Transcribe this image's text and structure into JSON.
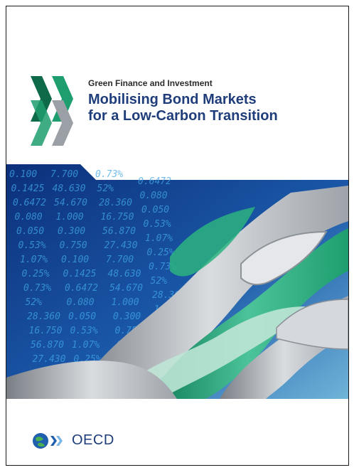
{
  "series": "Green Finance and Investment",
  "title_line1": "Mobilising Bond Markets",
  "title_line2": "for a Low-Carbon Transition",
  "publisher": "OECD",
  "colors": {
    "title": "#1f3d7a",
    "accent": "#1e9e6f",
    "deep_blue": "#1a3f8c"
  },
  "background_numbers": [
    "0.100",
    "0.1425",
    "0.6472",
    "0.080",
    "0.050",
    "0.53%",
    "1.07%",
    "0.25%",
    "0.73%",
    "52%",
    "28.360",
    "16.750",
    "56.870",
    "27.430",
    "7.700",
    "48.630",
    "54.670",
    "1.000",
    "0.300",
    "0.750"
  ]
}
